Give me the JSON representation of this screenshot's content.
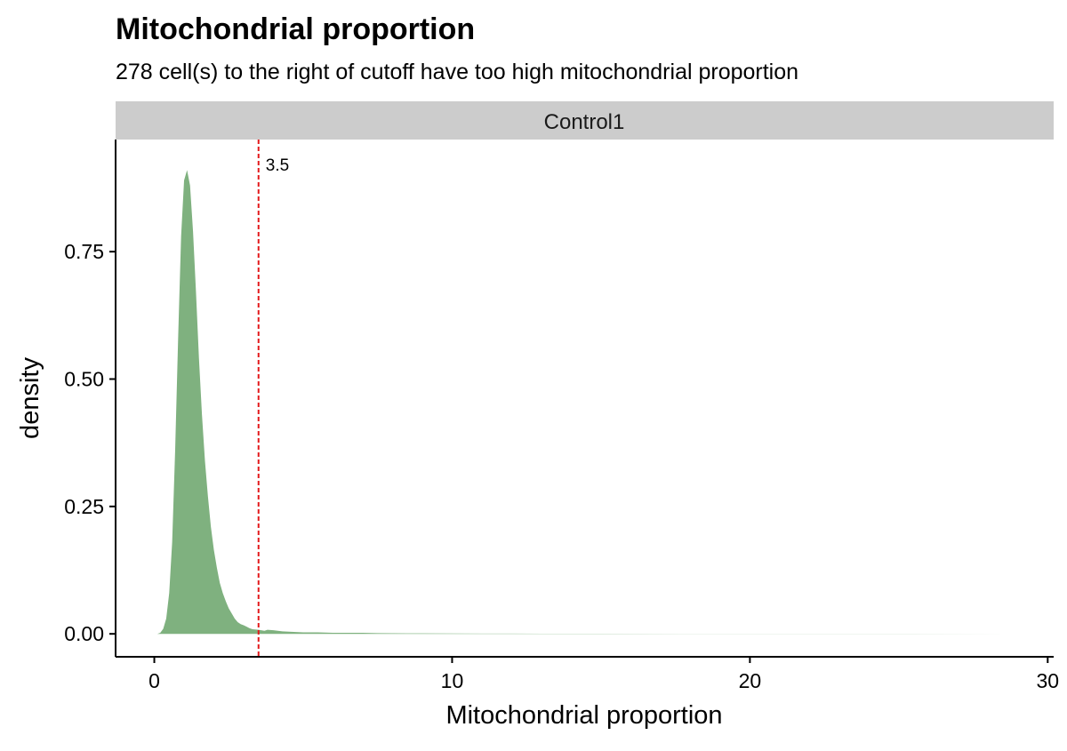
{
  "chart_data": {
    "type": "area",
    "title": "Mitochondrial proportion",
    "subtitle": "278 cell(s) to the right of cutoff have too high mitochondrial proportion",
    "facet": "Control1",
    "xlabel": "Mitochondrial proportion",
    "ylabel": "density",
    "xlim": [
      -1.3,
      30.2
    ],
    "ylim": [
      -0.045,
      0.97
    ],
    "x_ticks": [
      0,
      10,
      20,
      30
    ],
    "x_tick_labels": [
      "0",
      "10",
      "20",
      "30"
    ],
    "y_ticks": [
      0.0,
      0.25,
      0.5,
      0.75
    ],
    "y_tick_labels": [
      "0.00",
      "0.25",
      "0.50",
      "0.75"
    ],
    "fill_color": "#7fb17f",
    "cutoff": {
      "value": 3.5,
      "label": "3.5",
      "color": "#e31a1c"
    },
    "grid": false,
    "legend": "none",
    "series": [
      {
        "x": [
          0.1,
          0.2,
          0.3,
          0.4,
          0.5,
          0.6,
          0.7,
          0.8,
          0.9,
          1.0,
          1.1,
          1.2,
          1.3,
          1.4,
          1.5,
          1.6,
          1.7,
          1.8,
          1.9,
          2.0,
          2.1,
          2.2,
          2.3,
          2.4,
          2.5,
          2.6,
          2.7,
          2.8,
          2.9,
          3.0,
          3.1,
          3.2,
          3.3,
          3.5,
          3.7,
          3.8,
          4.0,
          4.3,
          4.6,
          5.0,
          5.5,
          6.0,
          6.5,
          7.0,
          7.5,
          8.0,
          8.5,
          9.0,
          10.0,
          11.0,
          12.0,
          13.0,
          15.0,
          18.0,
          22.0,
          25.0,
          28.8
        ],
        "y": [
          0.0,
          0.002,
          0.01,
          0.03,
          0.08,
          0.18,
          0.36,
          0.58,
          0.78,
          0.89,
          0.91,
          0.88,
          0.79,
          0.67,
          0.54,
          0.43,
          0.34,
          0.27,
          0.21,
          0.165,
          0.13,
          0.1,
          0.08,
          0.064,
          0.05,
          0.04,
          0.03,
          0.023,
          0.019,
          0.017,
          0.014,
          0.011,
          0.009,
          0.008,
          0.006,
          0.008,
          0.007,
          0.005,
          0.004,
          0.003,
          0.003,
          0.002,
          0.002,
          0.002,
          0.0015,
          0.0012,
          0.001,
          0.001,
          0.0008,
          0.0006,
          0.0005,
          0.0004,
          0.0003,
          0.0002,
          0.0002,
          0.0001,
          0.0
        ]
      }
    ]
  }
}
